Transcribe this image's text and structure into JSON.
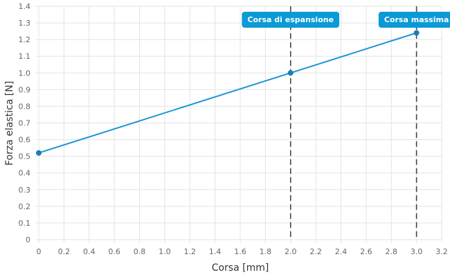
{
  "chart_data": {
    "type": "line",
    "xlabel": "Corsa [mm]",
    "ylabel": "Forza elastica [N]",
    "xlim": [
      0,
      3.2
    ],
    "ylim": [
      0,
      1.4
    ],
    "x_ticks": [
      "0",
      "0.2",
      "0.4",
      "0.6",
      "0.8",
      "1.0",
      "1.2",
      "1.4",
      "1.6",
      "1.8",
      "2.0",
      "2.2",
      "2.4",
      "2.6",
      "2.8",
      "3.0",
      "3.2"
    ],
    "y_ticks": [
      "0",
      "0.1",
      "0.2",
      "0.3",
      "0.4",
      "0.5",
      "0.6",
      "0.7",
      "0.8",
      "0.9",
      "1.0",
      "1.1",
      "1.2",
      "1.3",
      "1.4"
    ],
    "grid": true,
    "series": [
      {
        "color": "#1b95d4",
        "points": [
          {
            "x": 0,
            "y": 0.52
          },
          {
            "x": 2.0,
            "y": 1.0
          },
          {
            "x": 3.0,
            "y": 1.24
          }
        ]
      }
    ],
    "markers": [
      {
        "x": 2.0,
        "label": "Corsa di espansione"
      },
      {
        "x": 3.0,
        "label": "Corsa massima"
      }
    ],
    "colors": {
      "marker_label": "#0a9ad6",
      "point": "#1a7fb6"
    }
  }
}
